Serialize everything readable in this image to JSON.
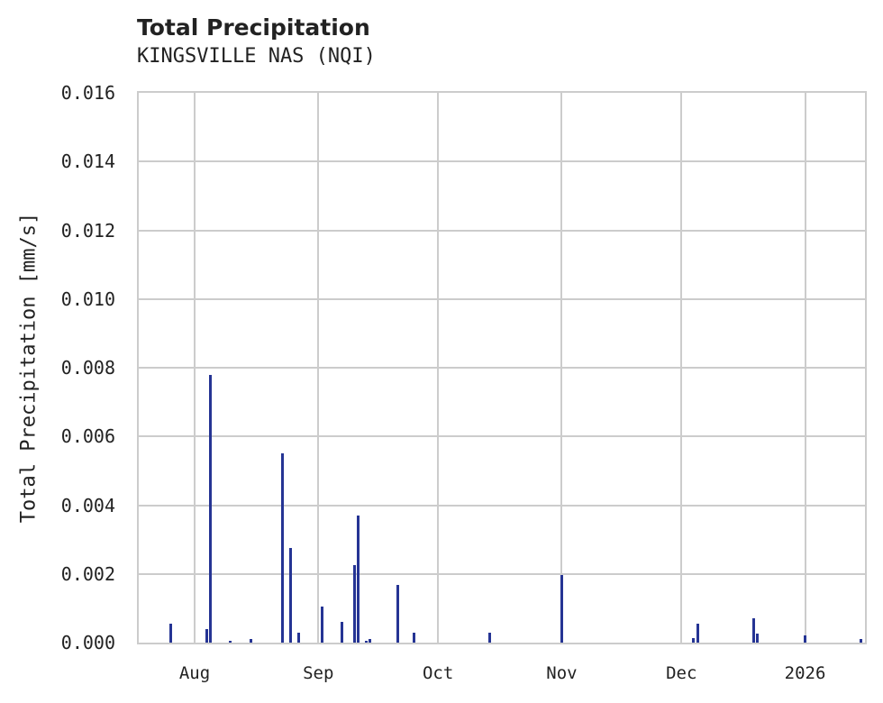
{
  "header": {
    "title": "Total Precipitation",
    "subtitle": "KINGSVILLE NAS (NQI)"
  },
  "axes": {
    "ylabel": "Total Precipitation [mm/s]",
    "yticks": [
      "0.000",
      "0.002",
      "0.004",
      "0.006",
      "0.008",
      "0.010",
      "0.012",
      "0.014",
      "0.016"
    ],
    "xticks": [
      "Aug",
      "Sep",
      "Oct",
      "Nov",
      "Dec",
      "2026"
    ]
  },
  "colors": {
    "bar": "#253494",
    "grid": "#cccccc"
  },
  "chart_data": {
    "type": "bar",
    "title": "Total Precipitation",
    "subtitle": "KINGSVILLE NAS (NQI)",
    "xlabel": "",
    "ylabel": "Total Precipitation [mm/s]",
    "ylim": [
      0,
      0.016
    ],
    "xlim": [
      "2025-07-18",
      "2026-01-16"
    ],
    "grid": true,
    "legend": null,
    "x_tick_labels": [
      "Aug",
      "Sep",
      "Oct",
      "Nov",
      "Dec",
      "2026"
    ],
    "y_tick_labels": [
      "0.000",
      "0.002",
      "0.004",
      "0.006",
      "0.008",
      "0.010",
      "0.012",
      "0.014",
      "0.016"
    ],
    "series": [
      {
        "name": "Total Precipitation",
        "x": [
          "2025-07-26",
          "2025-08-04",
          "2025-08-05",
          "2025-08-10",
          "2025-08-15",
          "2025-08-23",
          "2025-08-25",
          "2025-08-27",
          "2025-09-02",
          "2025-09-07",
          "2025-09-10",
          "2025-09-11",
          "2025-09-13",
          "2025-09-14",
          "2025-09-21",
          "2025-09-25",
          "2025-10-14",
          "2025-11-01",
          "2025-12-04",
          "2025-12-05",
          "2025-12-19",
          "2025-12-20",
          "2026-01-01",
          "2026-01-15"
        ],
        "values": [
          0.00055,
          0.0004,
          0.0078,
          5e-05,
          0.0001,
          0.0055,
          0.00275,
          0.00028,
          0.00105,
          0.0006,
          0.00225,
          0.0037,
          5e-05,
          0.0001,
          0.00168,
          0.00028,
          0.00028,
          0.00197,
          0.00012,
          0.00056,
          0.0007,
          0.00027,
          0.0002,
          0.0001
        ]
      }
    ]
  }
}
